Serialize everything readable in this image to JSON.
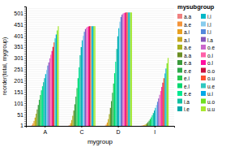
{
  "chart_data": {
    "type": "bar",
    "xlabel": "mygroup",
    "ylabel": "reorder(total, mygroup)",
    "legend_title": "mysubgroup",
    "legend": "right",
    "grid": true,
    "categories": [
      "A",
      "C",
      "D",
      "I"
    ],
    "series": [
      {
        "name": "a.a",
        "color": "#F08080",
        "values": [
          3,
          1,
          1,
          1
        ]
      },
      {
        "name": "a.e",
        "color": "#F4943A",
        "values": [
          11,
          3,
          6,
          2
        ]
      },
      {
        "name": "a.i",
        "color": "#E8A020",
        "values": [
          22,
          12,
          15,
          3
        ]
      },
      {
        "name": "a.l",
        "color": "#C8A820",
        "values": [
          37,
          26,
          30,
          5
        ]
      },
      {
        "name": "a.e",
        "color": "#A8B020",
        "values": [
          54,
          45,
          52,
          8
        ]
      },
      {
        "name": "a.a",
        "color": "#6B8E23",
        "values": [
          73,
          68,
          80,
          12
        ]
      },
      {
        "name": "e.a",
        "color": "#3A9A3A",
        "values": [
          93,
          96,
          110,
          17
        ]
      },
      {
        "name": "e.e",
        "color": "#2EA84A",
        "values": [
          116,
          130,
          147,
          23
        ]
      },
      {
        "name": "e.i",
        "color": "#28C850",
        "values": [
          137,
          168,
          188,
          30
        ]
      },
      {
        "name": "e.l",
        "color": "#00D870",
        "values": [
          158,
          212,
          234,
          38
        ]
      },
      {
        "name": "e.e",
        "color": "#00E890",
        "values": [
          176,
          260,
          285,
          47
        ]
      },
      {
        "name": "i.a",
        "color": "#10C0A0",
        "values": [
          194,
          314,
          342,
          57
        ]
      },
      {
        "name": "i.e",
        "color": "#00A8A8",
        "values": [
          212,
          350,
          398,
          68
        ]
      },
      {
        "name": "i.i",
        "color": "#00B8C8",
        "values": [
          230,
          380,
          434,
          80
        ]
      },
      {
        "name": "i.l",
        "color": "#88CCEE",
        "values": [
          248,
          400,
          463,
          93
        ]
      },
      {
        "name": "l.i",
        "color": "#5588DD",
        "values": [
          268,
          418,
          484,
          107
        ]
      },
      {
        "name": "l.a",
        "color": "#8855BB",
        "values": [
          282,
          430,
          494,
          122
        ]
      },
      {
        "name": "o.e",
        "color": "#CC66CC",
        "values": [
          300,
          436,
          499,
          138
        ]
      },
      {
        "name": "o.i",
        "color": "#FF60A8",
        "values": [
          316,
          440,
          502,
          155
        ]
      },
      {
        "name": "o.l",
        "color": "#FF10A0",
        "values": [
          333,
          442,
          503,
          173
        ]
      },
      {
        "name": "o.o",
        "color": "#CC1040",
        "values": [
          351,
          443,
          504,
          192
        ]
      },
      {
        "name": "o.u",
        "color": "#FF5030",
        "values": [
          371,
          443,
          504,
          212
        ]
      },
      {
        "name": "u.e",
        "color": "#30C8C0",
        "values": [
          389,
          443,
          504,
          233
        ]
      },
      {
        "name": "u.i",
        "color": "#00A8E8",
        "values": [
          406,
          443,
          504,
          255
        ]
      },
      {
        "name": "u.o",
        "color": "#70E020",
        "values": [
          424,
          443,
          504,
          278
        ]
      },
      {
        "name": "u.u",
        "color": "#A8E830",
        "values": [
          443,
          443,
          504,
          302
        ]
      }
    ],
    "ylim": [
      0,
      530.4
    ],
    "yticks": [
      1,
      {
        "value": 11,
        "label": null
      },
      {
        "value": 21,
        "label": null
      },
      {
        "value": 31,
        "label": null
      },
      {
        "value": 41,
        "label": null
      },
      51,
      {
        "value": 61,
        "label": null
      },
      {
        "value": 71,
        "label": null
      },
      {
        "value": 81,
        "label": null
      },
      {
        "value": 91,
        "label": null
      },
      101,
      {
        "value": 111,
        "label": null
      },
      {
        "value": 121,
        "label": null
      },
      {
        "value": 131,
        "label": null
      },
      {
        "value": 141,
        "label": null
      },
      151,
      {
        "value": 161,
        "label": null
      },
      {
        "value": 171,
        "label": null
      },
      {
        "value": 181,
        "label": null
      },
      {
        "value": 191,
        "label": null
      },
      201,
      {
        "value": 211,
        "label": null
      },
      {
        "value": 221,
        "label": null
      },
      {
        "value": 231,
        "label": null
      },
      {
        "value": 241,
        "label": null
      },
      251,
      {
        "value": 261,
        "label": null
      },
      {
        "value": 271,
        "label": null
      },
      {
        "value": 281,
        "label": null
      },
      {
        "value": 291,
        "label": null
      },
      301,
      {
        "value": 311,
        "label": null
      },
      {
        "value": 321,
        "label": null
      },
      {
        "value": 331,
        "label": null
      },
      {
        "value": 341,
        "label": null
      },
      351,
      {
        "value": 361,
        "label": null
      },
      {
        "value": 371,
        "label": null
      },
      {
        "value": 381,
        "label": null
      },
      {
        "value": 391,
        "label": null
      },
      401,
      {
        "value": 411,
        "label": null
      },
      {
        "value": 421,
        "label": null
      },
      {
        "value": 431,
        "label": null
      },
      {
        "value": 441,
        "label": null
      },
      451,
      {
        "value": 461,
        "label": null
      },
      {
        "value": 471,
        "label": null
      },
      {
        "value": 481,
        "label": null
      },
      {
        "value": 491,
        "label": null
      },
      501,
      {
        "value": 511,
        "label": null
      },
      {
        "value": 521,
        "label": null
      }
    ]
  }
}
